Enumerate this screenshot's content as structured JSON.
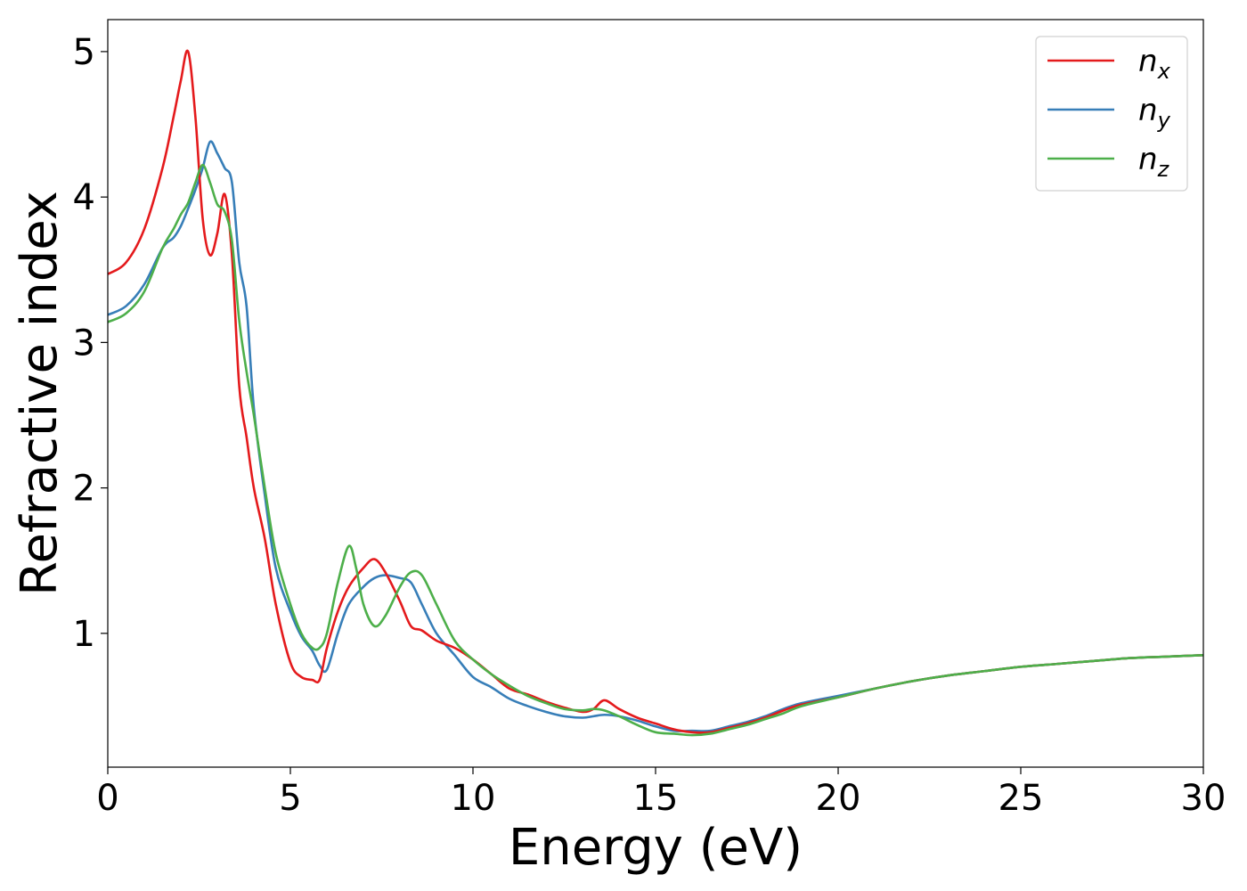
{
  "chart_data": {
    "type": "line",
    "xlabel": "Energy (eV)",
    "ylabel": "Refractive index",
    "xlim": [
      0,
      30
    ],
    "ylim": [
      0.08,
      5.22
    ],
    "xticks": [
      0,
      5,
      10,
      15,
      20,
      25,
      30
    ],
    "yticks": [
      1,
      2,
      3,
      4,
      5
    ],
    "xtick_labels": [
      "0",
      "5",
      "10",
      "15",
      "20",
      "25",
      "30"
    ],
    "ytick_labels": [
      "1",
      "2",
      "3",
      "4",
      "5"
    ],
    "grid": false,
    "legend_position": "top-right",
    "series": [
      {
        "name": "n",
        "subscript": "x",
        "color": "#e41a1c",
        "x": [
          0,
          0.5,
          1.0,
          1.5,
          1.8,
          2.0,
          2.2,
          2.4,
          2.6,
          2.8,
          3.0,
          3.2,
          3.4,
          3.6,
          3.8,
          4.0,
          4.3,
          4.6,
          5.0,
          5.3,
          5.6,
          5.8,
          6.0,
          6.3,
          6.6,
          7.0,
          7.3,
          7.6,
          8.0,
          8.3,
          8.6,
          9.0,
          9.5,
          10.0,
          10.5,
          11.0,
          11.5,
          12.0,
          12.5,
          13.0,
          13.3,
          13.6,
          14.0,
          14.5,
          15.0,
          15.5,
          16.0,
          16.5,
          17.0,
          17.5,
          18.0,
          18.5,
          19.0,
          20.0,
          21.0,
          22.0,
          23.0,
          24.0,
          25.0,
          26.0,
          27.0,
          28.0,
          29.0,
          30.0
        ],
        "values": [
          3.47,
          3.55,
          3.78,
          4.2,
          4.55,
          4.8,
          5.0,
          4.55,
          3.85,
          3.6,
          3.75,
          4.02,
          3.6,
          2.7,
          2.35,
          2.0,
          1.65,
          1.2,
          0.8,
          0.7,
          0.68,
          0.68,
          0.9,
          1.15,
          1.32,
          1.45,
          1.51,
          1.42,
          1.22,
          1.05,
          1.02,
          0.95,
          0.9,
          0.82,
          0.72,
          0.62,
          0.58,
          0.53,
          0.49,
          0.46,
          0.48,
          0.54,
          0.48,
          0.42,
          0.38,
          0.34,
          0.32,
          0.32,
          0.35,
          0.38,
          0.42,
          0.47,
          0.51,
          0.56,
          0.62,
          0.67,
          0.71,
          0.74,
          0.77,
          0.79,
          0.81,
          0.83,
          0.84,
          0.85
        ]
      },
      {
        "name": "n",
        "subscript": "y",
        "color": "#377eb8",
        "x": [
          0,
          0.5,
          1.0,
          1.5,
          1.8,
          2.0,
          2.2,
          2.4,
          2.6,
          2.8,
          3.0,
          3.2,
          3.4,
          3.6,
          3.8,
          4.0,
          4.3,
          4.6,
          5.0,
          5.3,
          5.6,
          5.8,
          6.0,
          6.3,
          6.6,
          7.0,
          7.3,
          7.6,
          8.0,
          8.3,
          8.6,
          9.0,
          9.5,
          10.0,
          10.5,
          11.0,
          11.5,
          12.0,
          12.5,
          13.0,
          13.3,
          13.6,
          14.0,
          14.5,
          15.0,
          15.5,
          16.0,
          16.5,
          17.0,
          17.5,
          18.0,
          18.5,
          19.0,
          20.0,
          21.0,
          22.0,
          23.0,
          24.0,
          25.0,
          26.0,
          27.0,
          28.0,
          29.0,
          30.0
        ],
        "values": [
          3.19,
          3.25,
          3.4,
          3.65,
          3.72,
          3.8,
          3.92,
          4.05,
          4.2,
          4.38,
          4.3,
          4.2,
          4.1,
          3.55,
          3.25,
          2.55,
          1.95,
          1.45,
          1.15,
          0.98,
          0.88,
          0.78,
          0.75,
          1.0,
          1.2,
          1.32,
          1.38,
          1.4,
          1.38,
          1.35,
          1.2,
          1.0,
          0.85,
          0.7,
          0.63,
          0.55,
          0.5,
          0.46,
          0.43,
          0.42,
          0.43,
          0.44,
          0.43,
          0.4,
          0.36,
          0.33,
          0.33,
          0.33,
          0.36,
          0.39,
          0.43,
          0.48,
          0.52,
          0.57,
          0.62,
          0.67,
          0.71,
          0.74,
          0.77,
          0.79,
          0.81,
          0.83,
          0.84,
          0.85
        ]
      },
      {
        "name": "n",
        "subscript": "z",
        "color": "#4daf4a",
        "x": [
          0,
          0.5,
          1.0,
          1.5,
          1.8,
          2.0,
          2.2,
          2.4,
          2.6,
          2.8,
          3.0,
          3.2,
          3.4,
          3.6,
          3.8,
          4.0,
          4.3,
          4.6,
          5.0,
          5.3,
          5.6,
          5.8,
          6.0,
          6.3,
          6.6,
          6.8,
          7.0,
          7.3,
          7.6,
          8.0,
          8.3,
          8.6,
          9.0,
          9.5,
          10.0,
          10.5,
          11.0,
          11.5,
          12.0,
          12.5,
          13.0,
          13.3,
          13.6,
          14.0,
          14.5,
          15.0,
          15.5,
          16.0,
          16.5,
          17.0,
          17.5,
          18.0,
          18.5,
          19.0,
          20.0,
          21.0,
          22.0,
          23.0,
          24.0,
          25.0,
          26.0,
          27.0,
          28.0,
          29.0,
          30.0
        ],
        "values": [
          3.14,
          3.2,
          3.35,
          3.65,
          3.78,
          3.88,
          3.96,
          4.1,
          4.22,
          4.1,
          3.95,
          3.9,
          3.7,
          3.15,
          2.8,
          2.5,
          2.0,
          1.55,
          1.2,
          1.0,
          0.9,
          0.9,
          1.0,
          1.35,
          1.6,
          1.45,
          1.2,
          1.05,
          1.12,
          1.32,
          1.42,
          1.4,
          1.2,
          0.95,
          0.82,
          0.72,
          0.64,
          0.57,
          0.52,
          0.48,
          0.47,
          0.48,
          0.47,
          0.43,
          0.37,
          0.32,
          0.31,
          0.3,
          0.31,
          0.34,
          0.37,
          0.41,
          0.45,
          0.5,
          0.56,
          0.62,
          0.67,
          0.71,
          0.74,
          0.77,
          0.79,
          0.81,
          0.83,
          0.84,
          0.85
        ]
      }
    ]
  }
}
